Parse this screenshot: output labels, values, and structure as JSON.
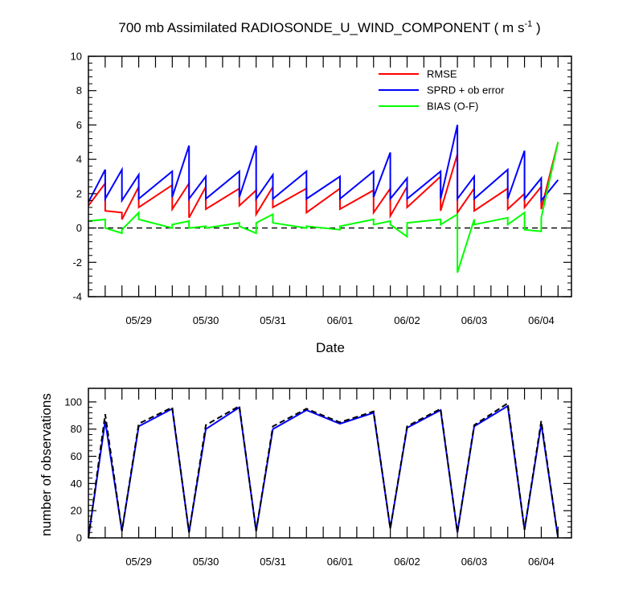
{
  "chart_data": [
    {
      "type": "line",
      "title": "700 mb Assimilated RADIOSONDE_U_WIND_COMPONENT ( m s",
      "title_sup": "-1",
      "title_end": " )",
      "xlabel": "Date",
      "ylabel": "",
      "ylim": [
        -4,
        10
      ],
      "yticks": [
        "-4",
        "-2",
        "0",
        "2",
        "4",
        "6",
        "8",
        "10"
      ],
      "xlim": [
        0,
        7.2
      ],
      "date_labels": [
        "05/29",
        "05/30",
        "05/31",
        "06/01",
        "06/02",
        "06/03",
        "06/04"
      ],
      "date_positions": [
        0.75,
        1.75,
        2.75,
        3.75,
        4.75,
        5.75,
        6.75
      ],
      "zero_line": "dashed",
      "legend_placement": "top-right",
      "series": [
        {
          "name": "RMSE",
          "color": "#ff0000",
          "x": [
            0.0,
            0.25,
            0.25,
            0.5,
            0.5,
            0.75,
            0.75,
            1.25,
            1.25,
            1.5,
            1.5,
            1.75,
            1.75,
            2.25,
            2.25,
            2.5,
            2.5,
            2.75,
            2.75,
            3.25,
            3.25,
            3.75,
            3.75,
            4.25,
            4.25,
            4.5,
            4.5,
            4.75,
            4.75,
            5.25,
            5.25,
            5.5,
            5.5,
            5.75,
            5.75,
            6.25,
            6.25,
            6.5,
            6.5,
            6.75,
            6.75,
            7.0
          ],
          "y": [
            1.3,
            2.6,
            1.0,
            0.9,
            0.5,
            2.4,
            1.2,
            2.5,
            1.1,
            2.6,
            0.6,
            2.4,
            1.1,
            2.3,
            1.3,
            2.2,
            0.8,
            2.4,
            1.2,
            2.3,
            0.9,
            2.3,
            1.1,
            2.2,
            0.9,
            2.3,
            0.7,
            2.4,
            1.2,
            3.0,
            1.0,
            4.3,
            0.9,
            2.3,
            1.0,
            2.3,
            1.1,
            2.0,
            1.2,
            2.4,
            1.1,
            5.0
          ]
        },
        {
          "name": "SPRD + ob error",
          "color": "#0000ff",
          "x": [
            0.0,
            0.25,
            0.25,
            0.5,
            0.5,
            0.75,
            0.75,
            1.25,
            1.25,
            1.5,
            1.5,
            1.75,
            1.75,
            2.25,
            2.25,
            2.5,
            2.5,
            2.75,
            2.75,
            3.25,
            3.25,
            3.75,
            3.75,
            4.25,
            4.25,
            4.5,
            4.5,
            4.75,
            4.75,
            5.25,
            5.25,
            5.5,
            5.5,
            5.75,
            5.75,
            6.25,
            6.25,
            6.5,
            6.5,
            6.75,
            6.75,
            7.0
          ],
          "y": [
            1.5,
            3.4,
            1.7,
            3.4,
            1.6,
            3.1,
            1.7,
            3.3,
            1.8,
            4.8,
            1.7,
            3.0,
            1.7,
            3.3,
            1.8,
            4.8,
            1.7,
            3.1,
            1.7,
            3.3,
            1.7,
            3.0,
            1.7,
            3.3,
            1.8,
            4.4,
            1.7,
            2.9,
            1.7,
            3.3,
            1.7,
            6.0,
            1.7,
            3.0,
            1.7,
            3.4,
            1.7,
            4.5,
            1.7,
            2.9,
            1.6,
            2.8
          ]
        },
        {
          "name": "BIAS (O-F)",
          "color": "#00ff00",
          "x": [
            0.0,
            0.25,
            0.25,
            0.5,
            0.5,
            0.75,
            0.75,
            1.25,
            1.25,
            1.5,
            1.5,
            1.75,
            1.75,
            2.25,
            2.25,
            2.5,
            2.5,
            2.75,
            2.75,
            3.25,
            3.25,
            3.75,
            3.75,
            4.25,
            4.25,
            4.5,
            4.5,
            4.75,
            4.75,
            5.25,
            5.25,
            5.5,
            5.5,
            5.75,
            5.75,
            6.25,
            6.25,
            6.5,
            6.5,
            6.75,
            6.75,
            7.0
          ],
          "y": [
            0.4,
            0.5,
            0.0,
            -0.3,
            -0.1,
            0.9,
            0.5,
            0.0,
            0.2,
            0.4,
            0.0,
            0.1,
            0.0,
            0.3,
            0.1,
            -0.3,
            0.3,
            0.8,
            0.3,
            0.0,
            0.1,
            -0.1,
            0.1,
            0.5,
            0.2,
            0.4,
            0.2,
            -0.5,
            0.3,
            0.5,
            0.2,
            0.8,
            -2.6,
            0.5,
            0.2,
            0.6,
            0.2,
            0.9,
            -0.1,
            -0.2,
            0.6,
            5.0
          ]
        }
      ]
    },
    {
      "type": "line",
      "ylabel": "number of observations",
      "ylim": [
        0,
        110
      ],
      "yticks": [
        "0",
        "20",
        "40",
        "60",
        "80",
        "100"
      ],
      "xlim": [
        0,
        7.2
      ],
      "date_labels": [
        "05/29",
        "05/30",
        "05/31",
        "06/01",
        "06/02",
        "06/03",
        "06/04"
      ],
      "date_positions": [
        0.75,
        1.75,
        2.75,
        3.75,
        4.75,
        5.75,
        6.75
      ],
      "series": [
        {
          "color": "#0000ff",
          "style": "solid",
          "x": [
            0.0,
            0.25,
            0.5,
            0.75,
            1.25,
            1.5,
            1.75,
            2.25,
            2.5,
            2.75,
            3.25,
            3.75,
            4.25,
            4.5,
            4.75,
            5.25,
            5.5,
            5.75,
            6.25,
            6.5,
            6.75,
            7.0
          ],
          "y": [
            0,
            86,
            5,
            82,
            95,
            4,
            80,
            96,
            5,
            80,
            94,
            84,
            92,
            7,
            81,
            94,
            4,
            82,
            97,
            6,
            84,
            0
          ]
        },
        {
          "color": "#000000",
          "style": "dashed",
          "x": [
            0.0,
            0.25,
            0.5,
            0.75,
            1.25,
            1.5,
            1.75,
            2.25,
            2.5,
            2.75,
            3.25,
            3.75,
            4.25,
            4.5,
            4.75,
            5.25,
            5.5,
            5.75,
            6.25,
            6.5,
            6.75,
            7.0
          ],
          "y": [
            0,
            91,
            5,
            84,
            96,
            4,
            83,
            97,
            5,
            82,
            95,
            85,
            93,
            7,
            82,
            95,
            4,
            83,
            99,
            6,
            86,
            0
          ]
        }
      ]
    }
  ]
}
